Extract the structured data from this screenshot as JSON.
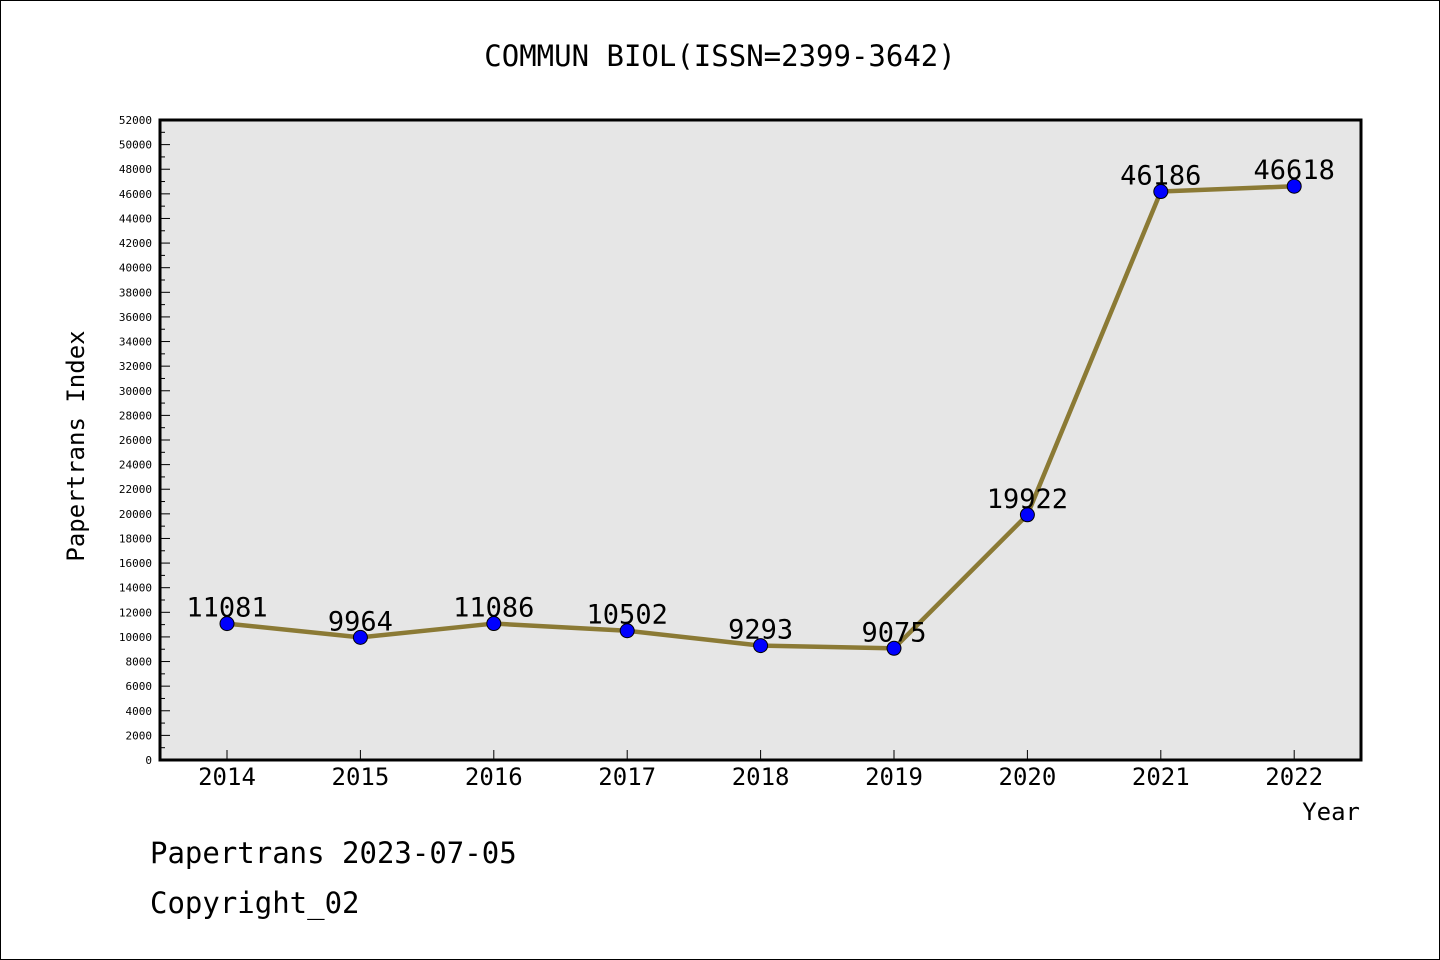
{
  "chart_data": {
    "type": "line",
    "title": "COMMUN BIOL(ISSN=2399-3642)",
    "xlabel": "Year",
    "ylabel": "Papertrans Index",
    "categories": [
      "2014",
      "2015",
      "2016",
      "2017",
      "2018",
      "2019",
      "2020",
      "2021",
      "2022"
    ],
    "series": [
      {
        "values": [
          11081,
          9964,
          11086,
          10502,
          9293,
          9075,
          19922,
          46186,
          46618
        ]
      }
    ],
    "data_labels": [
      "11081",
      "9964",
      "11086",
      "10502",
      "9293",
      "9075",
      "19922",
      "46186",
      "46618"
    ],
    "ylim": [
      0,
      52000
    ],
    "yticks": [
      "0",
      "2000",
      "4000",
      "6000",
      "8000",
      "10000",
      "12000",
      "14000",
      "16000",
      "18000",
      "20000",
      "22000",
      "24000",
      "26000",
      "28000",
      "30000",
      "32000",
      "34000",
      "36000",
      "38000",
      "40000",
      "42000",
      "44000",
      "46000",
      "48000",
      "50000",
      "52000"
    ],
    "grid": false,
    "colors": {
      "line": "#8b7a35",
      "marker": "#0000ff",
      "plot_bg": "#e6e6e6"
    }
  },
  "footer": {
    "date_line": "Papertrans 2023-07-05",
    "copyright": "Copyright_02"
  }
}
